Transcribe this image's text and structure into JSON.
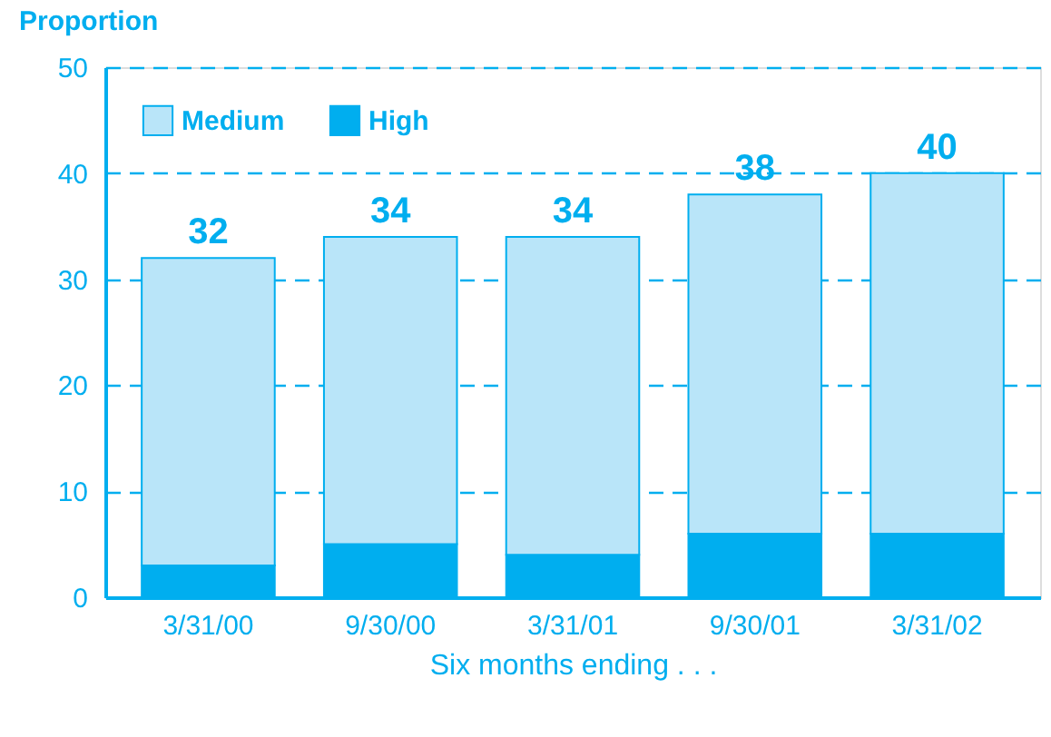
{
  "chart_data": {
    "type": "bar",
    "stacked": true,
    "ylabel": "Proportion",
    "xlabel": "Six months ending . . .",
    "categories": [
      "3/31/00",
      "9/30/00",
      "3/31/01",
      "9/30/01",
      "3/31/02"
    ],
    "series": [
      {
        "name": "High",
        "color": "#00aeef",
        "values": [
          3,
          5,
          4,
          6,
          6
        ]
      },
      {
        "name": "Medium",
        "color": "#b9e5f9",
        "values": [
          29,
          29,
          30,
          32,
          34
        ]
      }
    ],
    "totals": [
      "32",
      "34",
      "34",
      "38",
      "40"
    ],
    "ylim": [
      0,
      50
    ],
    "yticks": [
      0,
      10,
      20,
      30,
      40,
      50
    ],
    "grid": "y",
    "legend": "top left"
  }
}
